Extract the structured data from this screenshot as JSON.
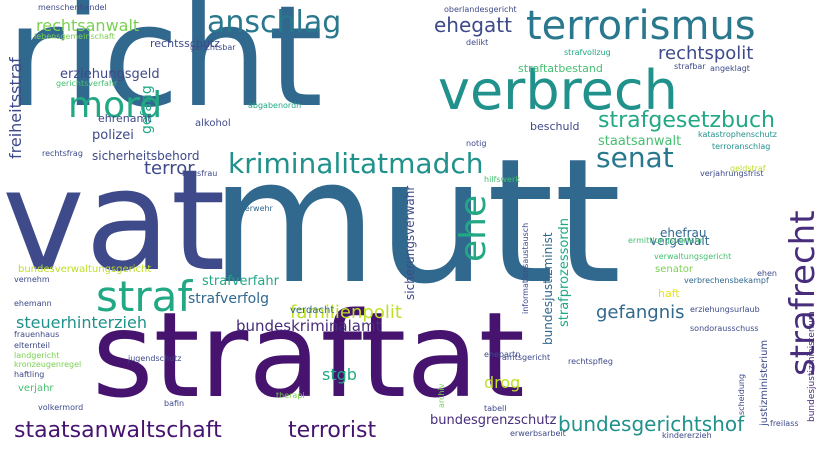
{
  "palette": {
    "deep_purple": "#46136f",
    "purple": "#472d7b",
    "indigo": "#3e4a89",
    "blue": "#31688e",
    "steel": "#2a788e",
    "teal": "#21918c",
    "green_teal": "#22a884",
    "green": "#44bf70",
    "lime": "#7ad151",
    "yellow_green": "#bddf26",
    "yellow": "#e4e419"
  },
  "words": [
    {
      "text": "richt",
      "color": "#31688e"
    },
    {
      "text": "vat",
      "color": "#3e4a89"
    },
    {
      "text": "mutt",
      "color": "#31688e"
    },
    {
      "text": "straftat",
      "color": "#46136f"
    },
    {
      "text": "verbrech",
      "color": "#21918c"
    },
    {
      "text": "terrorismus",
      "color": "#2a788e"
    },
    {
      "text": "strafrecht",
      "color": "#472d7b"
    },
    {
      "text": "anschlag",
      "color": "#2a788e"
    },
    {
      "text": "mord",
      "color": "#22a884"
    },
    {
      "text": "kriminalitatmadch",
      "color": "#21918c"
    },
    {
      "text": "straf",
      "color": "#22a884"
    },
    {
      "text": "ehe",
      "color": "#22a884"
    },
    {
      "text": "strafgesetzbuch",
      "color": "#22a884"
    },
    {
      "text": "senat",
      "color": "#2a788e"
    },
    {
      "text": "rechtspolit",
      "color": "#3e4a89"
    },
    {
      "text": "ehegatt",
      "color": "#3e4a89"
    },
    {
      "text": "terror",
      "color": "#3e4a89"
    },
    {
      "text": "staatsanwaltschaft",
      "color": "#46136f"
    },
    {
      "text": "terrorist",
      "color": "#46136f"
    },
    {
      "text": "bundesgerichtshof",
      "color": "#21918c"
    },
    {
      "text": "familienpolit",
      "color": "#bddf26"
    },
    {
      "text": "gefangnis",
      "color": "#31688e"
    },
    {
      "text": "rechtsanwalt",
      "color": "#7ad151"
    },
    {
      "text": "freiheitsstraf",
      "color": "#3e4a89"
    },
    {
      "text": "steuerhinterzieh",
      "color": "#21918c"
    },
    {
      "text": "bundeskriminalamt",
      "color": "#472d7b"
    },
    {
      "text": "stgb",
      "color": "#22a884"
    },
    {
      "text": "drog",
      "color": "#bddf26"
    },
    {
      "text": "strafverfahr",
      "color": "#22a884"
    },
    {
      "text": "strafverfolg",
      "color": "#31688e"
    },
    {
      "text": "gefang",
      "color": "#22a884"
    },
    {
      "text": "staatsanwalt",
      "color": "#44bf70"
    },
    {
      "text": "strafprozessordn",
      "color": "#22a884"
    },
    {
      "text": "sicherungsverwahr",
      "color": "#3e4a89"
    },
    {
      "text": "bundesjustizminist",
      "color": "#31688e"
    },
    {
      "text": "erziehungsgeld",
      "color": "#3e4a89"
    },
    {
      "text": "rechtsschutz",
      "color": "#3e4a89"
    },
    {
      "text": "straftatbestand",
      "color": "#44bf70"
    },
    {
      "text": "polizei",
      "color": "#3e4a89"
    },
    {
      "text": "sicherheitsbehord",
      "color": "#3e4a89"
    },
    {
      "text": "vergewalt",
      "color": "#31688e"
    },
    {
      "text": "ehefrau",
      "color": "#31688e"
    },
    {
      "text": "beschuld",
      "color": "#3e4a89"
    },
    {
      "text": "bundesgrenzschutz",
      "color": "#472d7b"
    },
    {
      "text": "bundesverwaltungsgericht",
      "color": "#bddf26"
    },
    {
      "text": "ehrenamt",
      "color": "#3e4a89"
    },
    {
      "text": "alkohol",
      "color": "#3e4a89"
    },
    {
      "text": "verdacht",
      "color": "#31688e"
    },
    {
      "text": "haft",
      "color": "#e4e419"
    },
    {
      "text": "senator",
      "color": "#7ad151"
    },
    {
      "text": "justizministerium",
      "color": "#3e4a89"
    },
    {
      "text": "bundesjustizministerium",
      "color": "#472d7b"
    },
    {
      "text": "menschenhandel",
      "color": "#3e4a89"
    },
    {
      "text": "lebensgemeinschaft",
      "color": "#7ad151"
    },
    {
      "text": "oberlandesgericht",
      "color": "#3e4a89"
    },
    {
      "text": "delikt",
      "color": "#3e4a89"
    },
    {
      "text": "gerichtsbar",
      "color": "#3e4a89"
    },
    {
      "text": "gerichtsverfahr",
      "color": "#44bf70"
    },
    {
      "text": "strafvollzug",
      "color": "#22a884"
    },
    {
      "text": "strafbar",
      "color": "#3e4a89"
    },
    {
      "text": "angeklagt",
      "color": "#3e4a89"
    },
    {
      "text": "abgabenordn",
      "color": "#22a884"
    },
    {
      "text": "notig",
      "color": "#3e4a89"
    },
    {
      "text": "katastrophenschutz",
      "color": "#21918c"
    },
    {
      "text": "terroranschlag",
      "color": "#21918c"
    },
    {
      "text": "rechtsfrag",
      "color": "#3e4a89"
    },
    {
      "text": "hausfrau",
      "color": "#3e4a89"
    },
    {
      "text": "hilfswerk",
      "color": "#44bf70"
    },
    {
      "text": "verjahrungsfrist",
      "color": "#3e4a89"
    },
    {
      "text": "geldstraf",
      "color": "#bddf26"
    },
    {
      "text": "feuerwehr",
      "color": "#31688e"
    },
    {
      "text": "informationsaustausch",
      "color": "#3e4a89"
    },
    {
      "text": "ermittlungsverfahr",
      "color": "#44bf70"
    },
    {
      "text": "verwaltungsgericht",
      "color": "#44bf70"
    },
    {
      "text": "verbrechensbekampf",
      "color": "#31688e"
    },
    {
      "text": "ehen",
      "color": "#3e4a89"
    },
    {
      "text": "vernehm",
      "color": "#3e4a89"
    },
    {
      "text": "ehemann",
      "color": "#3e4a89"
    },
    {
      "text": "frauenhaus",
      "color": "#3e4a89"
    },
    {
      "text": "elternteil",
      "color": "#3e4a89"
    },
    {
      "text": "landgericht",
      "color": "#7ad151"
    },
    {
      "text": "kronzeugenregel",
      "color": "#7ad151"
    },
    {
      "text": "haftling",
      "color": "#3e4a89"
    },
    {
      "text": "verjahr",
      "color": "#44bf70"
    },
    {
      "text": "volkermord",
      "color": "#3e4a89"
    },
    {
      "text": "jugendschutz",
      "color": "#3e4a89"
    },
    {
      "text": "ehepartn",
      "color": "#3e4a89"
    },
    {
      "text": "amtsgericht",
      "color": "#3e4a89"
    },
    {
      "text": "rechtspfleg",
      "color": "#3e4a89"
    },
    {
      "text": "erziehungsurlaub",
      "color": "#3e4a89"
    },
    {
      "text": "sondorausschuss",
      "color": "#3e4a89"
    },
    {
      "text": "scheidung",
      "color": "#3e4a89"
    },
    {
      "text": "archiv",
      "color": "#7ad151"
    },
    {
      "text": "therapi",
      "color": "#7ad151"
    },
    {
      "text": "bafin",
      "color": "#3e4a89"
    },
    {
      "text": "tabell",
      "color": "#3e4a89"
    },
    {
      "text": "erwerbsarbeit",
      "color": "#3e4a89"
    },
    {
      "text": "kindererzieh",
      "color": "#3e4a89"
    },
    {
      "text": "freilass",
      "color": "#3e4a89"
    }
  ]
}
